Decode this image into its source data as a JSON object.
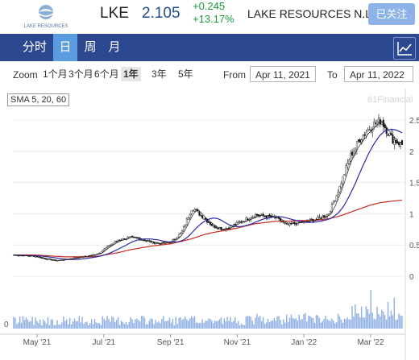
{
  "header": {
    "logo_text": "LAKE RESOURCES",
    "ticker": "LKE",
    "price": "2.105",
    "change": "+0.245",
    "change_pct": "+13.17%",
    "company": "LAKE RESOURCES N.L.",
    "follow_label": "已关注"
  },
  "tabs": [
    "分时",
    "日",
    "周",
    "月"
  ],
  "active_tab": "日",
  "toolbar": {
    "zoom_label": "Zoom",
    "zoom_options": [
      "1个月",
      "3个月",
      "6个月",
      "1年",
      "3年",
      "5年"
    ],
    "active_zoom": "1年",
    "from_label": "From",
    "from_date": "Apr 11, 2021",
    "to_label": "To",
    "to_date": "Apr 11, 2022"
  },
  "indicator_label": "SMA 5, 20, 60",
  "brand_text": "61Financial",
  "colors": {
    "up": "#169b39",
    "navy": "#2c4891",
    "tab_active": "#5b9ce0",
    "sma5": "#222222",
    "sma20": "#2a2aa8",
    "sma60": "#cc2a1c",
    "volume": "#93b2e4"
  },
  "chart_data": {
    "type": "candlestick",
    "x_ticks": [
      "May '21",
      "Jul '21",
      "Sep '21",
      "Nov '21",
      "Jan '22",
      "Mar '22"
    ],
    "y_ticks": [
      "0",
      "0.5",
      "1",
      "1.5",
      "2",
      "2.5"
    ],
    "ylim": [
      0,
      2.6
    ],
    "volume_axis_label": "0",
    "close_series": [
      0.34,
      0.33,
      0.32,
      0.28,
      0.25,
      0.27,
      0.3,
      0.32,
      0.36,
      0.48,
      0.58,
      0.62,
      0.6,
      0.55,
      0.52,
      0.55,
      0.7,
      1.1,
      0.95,
      0.8,
      0.75,
      0.82,
      0.9,
      0.98,
      0.96,
      0.93,
      0.82,
      0.85,
      0.88,
      0.92,
      1.0,
      1.4,
      1.9,
      2.2,
      2.4,
      2.5,
      2.2,
      2.105
    ],
    "sma60_series": [
      0.34,
      0.34,
      0.34,
      0.33,
      0.32,
      0.31,
      0.31,
      0.31,
      0.32,
      0.35,
      0.38,
      0.42,
      0.45,
      0.48,
      0.5,
      0.52,
      0.56,
      0.6,
      0.66,
      0.7,
      0.73,
      0.76,
      0.8,
      0.84,
      0.86,
      0.88,
      0.88,
      0.89,
      0.89,
      0.9,
      0.92,
      0.96,
      1.02,
      1.08,
      1.14,
      1.18,
      1.2,
      1.22
    ]
  }
}
